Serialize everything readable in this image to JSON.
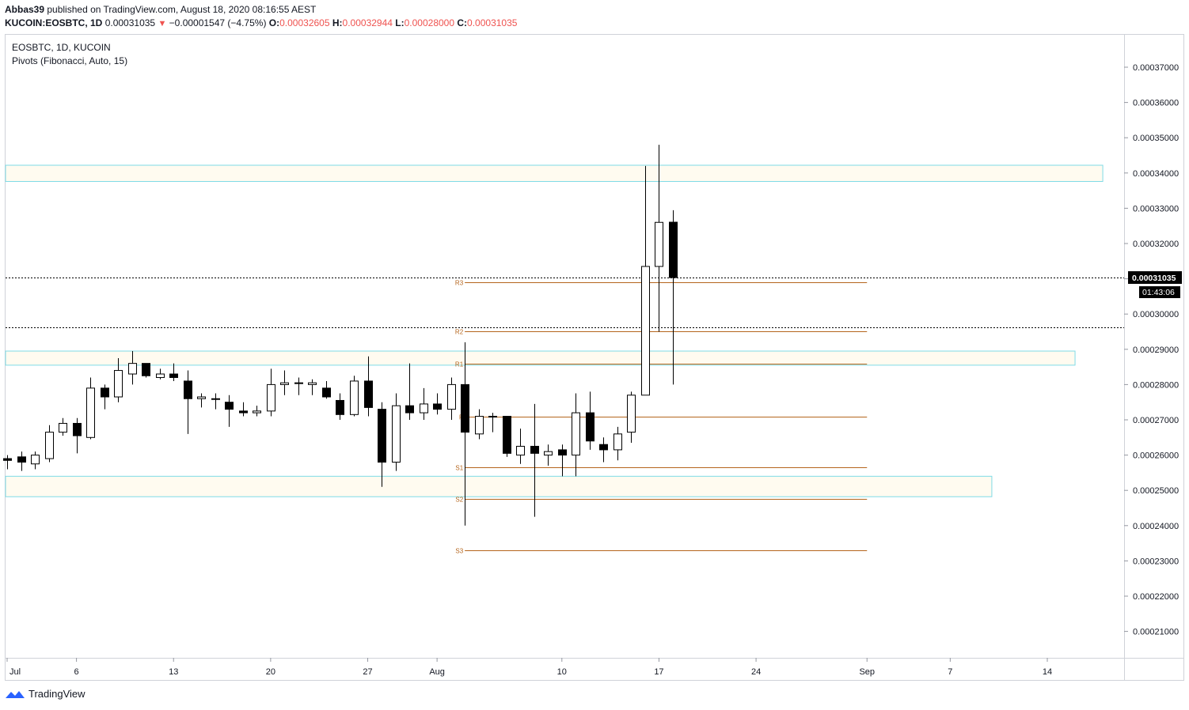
{
  "header": {
    "publish_line": "Abbas39",
    "publish_rest": " published on TradingView.com, August 18, 2020 08:16:55 AEST",
    "symbol_line": "KUCOIN:EOSBTC, 1D",
    "last": "0.00031035",
    "change_arrow": "▼",
    "change": "−0.00001547 (−4.75%)",
    "o_label": "O:",
    "o_value": "0.00032605",
    "h_label": "H:",
    "h_value": "0.00032944",
    "l_label": "L:",
    "l_value": "0.00028000",
    "c_label": "C:",
    "c_value": "0.00031035"
  },
  "legend": {
    "symbol": "EOSBTC, 1D, KUCOIN",
    "indicator": "Pivots (Fibonacci, Auto, 15)"
  },
  "price_axis": {
    "ticks": [
      "0.00037000",
      "0.00036000",
      "0.00035000",
      "0.00034000",
      "0.00033000",
      "0.00032000",
      "0.00031000",
      "0.00030000",
      "0.00029000",
      "0.00028000",
      "0.00027000",
      "0.00026000",
      "0.00025000",
      "0.00024000",
      "0.00023000",
      "0.00022000",
      "0.00021000"
    ],
    "last_price_label": "0.00031035",
    "countdown_label": "01:43:06"
  },
  "time_axis": {
    "labels": [
      "Jul",
      "6",
      "13",
      "20",
      "27",
      "Aug",
      "10",
      "17",
      "24",
      "Sep",
      "7",
      "14"
    ]
  },
  "footer": {
    "brand": "TradingView"
  },
  "colors": {
    "up_body": "#ffffff",
    "down_body": "#000000",
    "wick": "#000000",
    "pivot": "#b5651d",
    "zone_border": "#7fdbe6",
    "zone_fill": "#fffbf0",
    "axis_text": "#131722",
    "brand_blue": "#2962ff"
  },
  "chart_data": {
    "type": "candlestick",
    "symbol": "KUCOIN:EOSBTC",
    "interval": "1D",
    "ylim": [
      0.000202,
      0.000379
    ],
    "y_ticks": [
      0.00037,
      0.00036,
      0.00035,
      0.00034,
      0.00033,
      0.00032,
      0.00031,
      0.0003,
      0.00029,
      0.00028,
      0.00027,
      0.00026,
      0.00025,
      0.00024,
      0.00023,
      0.00022,
      0.00021
    ],
    "x_ticks": [
      {
        "label": "Jul",
        "date": "2020-07-01"
      },
      {
        "label": "6",
        "date": "2020-07-06"
      },
      {
        "label": "13",
        "date": "2020-07-13"
      },
      {
        "label": "20",
        "date": "2020-07-20"
      },
      {
        "label": "27",
        "date": "2020-07-27"
      },
      {
        "label": "Aug",
        "date": "2020-08-01"
      },
      {
        "label": "10",
        "date": "2020-08-10"
      },
      {
        "label": "17",
        "date": "2020-08-17"
      },
      {
        "label": "24",
        "date": "2020-08-24"
      },
      {
        "label": "Sep",
        "date": "2020-09-01"
      },
      {
        "label": "7",
        "date": "2020-09-07"
      },
      {
        "label": "14",
        "date": "2020-09-14"
      }
    ],
    "candles": [
      {
        "date": "2020-07-01",
        "o": 0.000259,
        "h": 0.00026,
        "l": 0.000256,
        "c": 0.0002585
      },
      {
        "date": "2020-07-02",
        "o": 0.0002595,
        "h": 0.000261,
        "l": 0.0002555,
        "c": 0.000258
      },
      {
        "date": "2020-07-03",
        "o": 0.0002575,
        "h": 0.000261,
        "l": 0.000256,
        "c": 0.00026
      },
      {
        "date": "2020-07-04",
        "o": 0.000259,
        "h": 0.0002685,
        "l": 0.000258,
        "c": 0.0002665
      },
      {
        "date": "2020-07-05",
        "o": 0.0002665,
        "h": 0.0002705,
        "l": 0.0002655,
        "c": 0.000269
      },
      {
        "date": "2020-07-06",
        "o": 0.000269,
        "h": 0.0002705,
        "l": 0.0002605,
        "c": 0.0002655
      },
      {
        "date": "2020-07-07",
        "o": 0.000265,
        "h": 0.000282,
        "l": 0.0002645,
        "c": 0.000279
      },
      {
        "date": "2020-07-08",
        "o": 0.000279,
        "h": 0.00028,
        "l": 0.000273,
        "c": 0.0002765
      },
      {
        "date": "2020-07-09",
        "o": 0.0002765,
        "h": 0.0002875,
        "l": 0.000275,
        "c": 0.000284
      },
      {
        "date": "2020-07-10",
        "o": 0.000283,
        "h": 0.0002895,
        "l": 0.00028,
        "c": 0.000286
      },
      {
        "date": "2020-07-11",
        "o": 0.000286,
        "h": 0.000286,
        "l": 0.000282,
        "c": 0.0002825
      },
      {
        "date": "2020-07-12",
        "o": 0.000282,
        "h": 0.0002845,
        "l": 0.0002815,
        "c": 0.000283
      },
      {
        "date": "2020-07-13",
        "o": 0.000283,
        "h": 0.000286,
        "l": 0.000281,
        "c": 0.000282
      },
      {
        "date": "2020-07-14",
        "o": 0.000281,
        "h": 0.000284,
        "l": 0.000266,
        "c": 0.000276
      },
      {
        "date": "2020-07-15",
        "o": 0.000276,
        "h": 0.0002775,
        "l": 0.0002735,
        "c": 0.0002765
      },
      {
        "date": "2020-07-16",
        "o": 0.000276,
        "h": 0.0002775,
        "l": 0.000273,
        "c": 0.000276
      },
      {
        "date": "2020-07-17",
        "o": 0.000275,
        "h": 0.000277,
        "l": 0.000268,
        "c": 0.000273
      },
      {
        "date": "2020-07-18",
        "o": 0.0002725,
        "h": 0.000275,
        "l": 0.000271,
        "c": 0.000272
      },
      {
        "date": "2020-07-19",
        "o": 0.000272,
        "h": 0.000274,
        "l": 0.000271,
        "c": 0.0002725
      },
      {
        "date": "2020-07-20",
        "o": 0.0002725,
        "h": 0.0002845,
        "l": 0.000271,
        "c": 0.00028
      },
      {
        "date": "2020-07-21",
        "o": 0.00028,
        "h": 0.000284,
        "l": 0.000277,
        "c": 0.0002805
      },
      {
        "date": "2020-07-22",
        "o": 0.0002805,
        "h": 0.000282,
        "l": 0.000277,
        "c": 0.0002805
      },
      {
        "date": "2020-07-23",
        "o": 0.00028,
        "h": 0.0002815,
        "l": 0.000277,
        "c": 0.0002805
      },
      {
        "date": "2020-07-24",
        "o": 0.000279,
        "h": 0.000281,
        "l": 0.000276,
        "c": 0.0002765
      },
      {
        "date": "2020-07-25",
        "o": 0.0002755,
        "h": 0.0002775,
        "l": 0.00027,
        "c": 0.0002715
      },
      {
        "date": "2020-07-26",
        "o": 0.0002715,
        "h": 0.0002825,
        "l": 0.000271,
        "c": 0.000281
      },
      {
        "date": "2020-07-27",
        "o": 0.000281,
        "h": 0.000288,
        "l": 0.000271,
        "c": 0.0002735
      },
      {
        "date": "2020-07-28",
        "o": 0.000273,
        "h": 0.000275,
        "l": 0.000251,
        "c": 0.000258
      },
      {
        "date": "2020-07-29",
        "o": 0.000258,
        "h": 0.0002775,
        "l": 0.0002555,
        "c": 0.000274
      },
      {
        "date": "2020-07-30",
        "o": 0.000274,
        "h": 0.000286,
        "l": 0.00027,
        "c": 0.000272
      },
      {
        "date": "2020-07-31",
        "o": 0.000272,
        "h": 0.000279,
        "l": 0.00027,
        "c": 0.0002745
      },
      {
        "date": "2020-08-01",
        "o": 0.0002745,
        "h": 0.0002775,
        "l": 0.0002715,
        "c": 0.000273
      },
      {
        "date": "2020-08-02",
        "o": 0.000273,
        "h": 0.000282,
        "l": 0.00027,
        "c": 0.00028
      },
      {
        "date": "2020-08-03",
        "o": 0.00028,
        "h": 0.000292,
        "l": 0.00024,
        "c": 0.0002665
      },
      {
        "date": "2020-08-04",
        "o": 0.000266,
        "h": 0.000273,
        "l": 0.0002645,
        "c": 0.000271
      },
      {
        "date": "2020-08-05",
        "o": 0.000271,
        "h": 0.000272,
        "l": 0.0002665,
        "c": 0.000271
      },
      {
        "date": "2020-08-06",
        "o": 0.000271,
        "h": 0.000271,
        "l": 0.0002595,
        "c": 0.0002605
      },
      {
        "date": "2020-08-07",
        "o": 0.00026,
        "h": 0.0002675,
        "l": 0.0002575,
        "c": 0.0002625
      },
      {
        "date": "2020-08-08",
        "o": 0.0002625,
        "h": 0.0002745,
        "l": 0.0002425,
        "c": 0.0002605
      },
      {
        "date": "2020-08-09",
        "o": 0.00026,
        "h": 0.000263,
        "l": 0.000257,
        "c": 0.000261
      },
      {
        "date": "2020-08-10",
        "o": 0.0002615,
        "h": 0.000263,
        "l": 0.000254,
        "c": 0.00026
      },
      {
        "date": "2020-08-11",
        "o": 0.00026,
        "h": 0.0002775,
        "l": 0.000254,
        "c": 0.000272
      },
      {
        "date": "2020-08-12",
        "o": 0.000272,
        "h": 0.000278,
        "l": 0.0002615,
        "c": 0.000264
      },
      {
        "date": "2020-08-13",
        "o": 0.000263,
        "h": 0.000265,
        "l": 0.000258,
        "c": 0.0002615
      },
      {
        "date": "2020-08-14",
        "o": 0.0002615,
        "h": 0.000268,
        "l": 0.0002585,
        "c": 0.000266
      },
      {
        "date": "2020-08-15",
        "o": 0.0002665,
        "h": 0.000278,
        "l": 0.0002635,
        "c": 0.000277
      },
      {
        "date": "2020-08-16",
        "o": 0.000277,
        "h": 0.000342,
        "l": 0.000277,
        "c": 0.0003135
      },
      {
        "date": "2020-08-17",
        "o": 0.0003135,
        "h": 0.000348,
        "l": 0.000295,
        "c": 0.000326
      },
      {
        "date": "2020-08-18",
        "o": 0.00032605,
        "h": 0.00032944,
        "l": 0.00028,
        "c": 0.00031035
      }
    ],
    "pivots": {
      "start_date": "2020-08-03",
      "end_date": "2020-09-01",
      "levels": [
        {
          "label": "R3",
          "value": 0.000309
        },
        {
          "label": "R2",
          "value": 0.000295
        },
        {
          "label": "R1",
          "value": 0.000286
        },
        {
          "label": "P",
          "value": 0.000271
        },
        {
          "label": "S1",
          "value": 0.0002565
        },
        {
          "label": "S2",
          "value": 0.0002475
        },
        {
          "label": "S3",
          "value": 0.000233
        }
      ]
    },
    "zones": [
      {
        "from": 0.0003376,
        "to": 0.0003422,
        "start_date": "2020-07-01",
        "end_date": "2020-09-18"
      },
      {
        "from": 0.0002855,
        "to": 0.0002895,
        "start_date": "2020-07-01",
        "end_date": "2020-09-16"
      },
      {
        "from": 0.0002482,
        "to": 0.000254,
        "start_date": "2020-07-01",
        "end_date": "2020-09-10"
      }
    ],
    "last_price": 0.00031035,
    "ref_line": 0.0002962,
    "grid": false
  }
}
